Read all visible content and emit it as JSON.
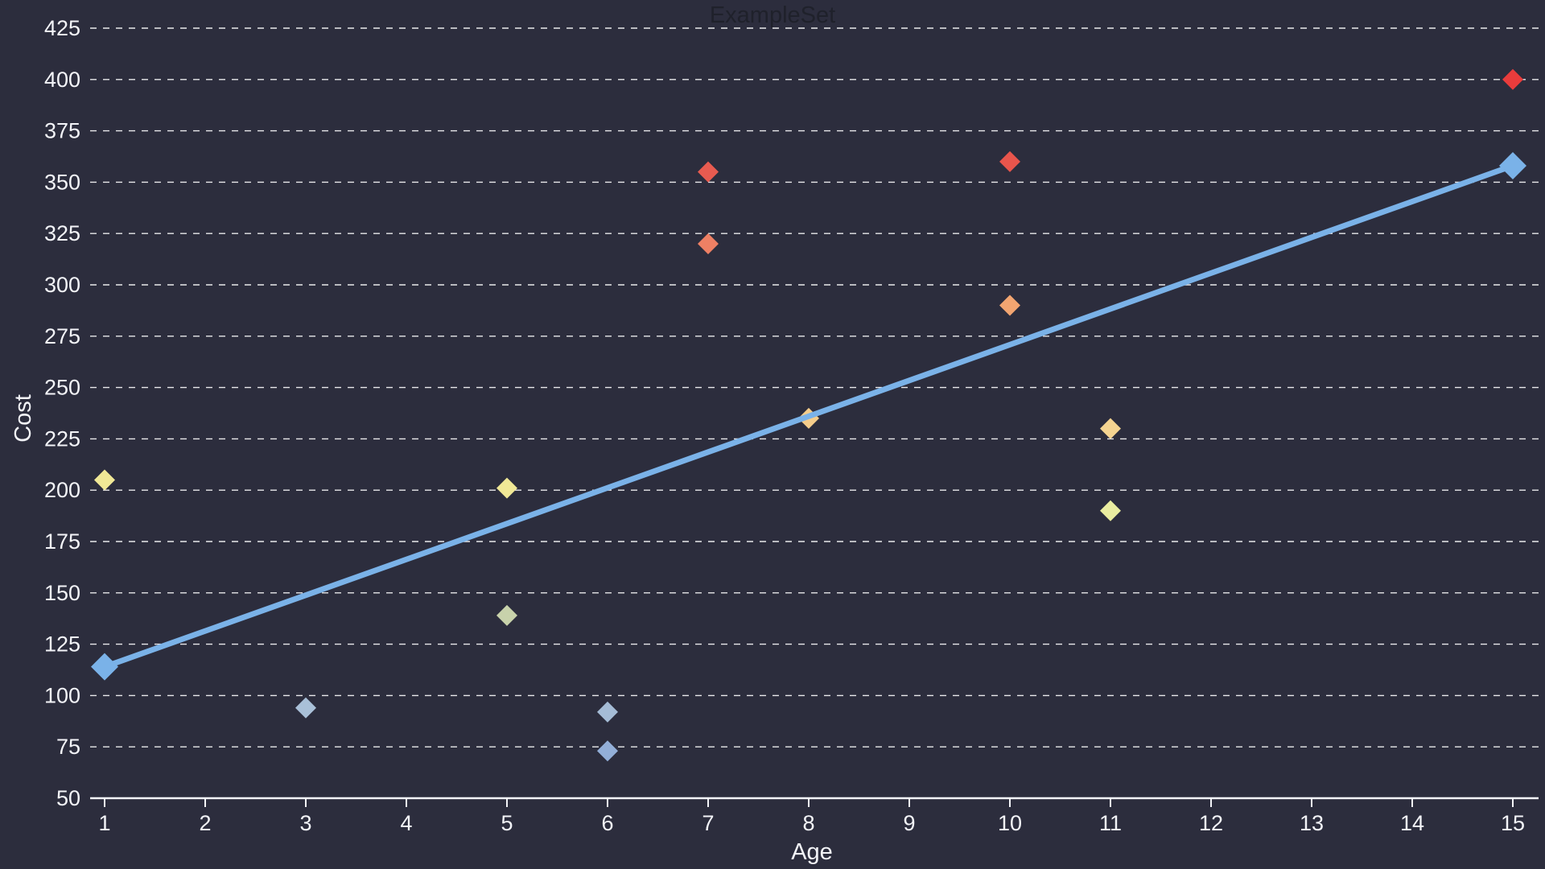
{
  "title": "ExampleSet",
  "colors": {
    "background": "#2c2d3d",
    "axis": "#f3f4f8",
    "gridline": "#ffffff",
    "title_text": "#1f212b",
    "trend_line": "#7ab2e8"
  },
  "chart_data": {
    "type": "scatter",
    "title": "ExampleSet",
    "xlabel": "Age",
    "ylabel": "Cost",
    "xlim": [
      1,
      15
    ],
    "ylim": [
      50,
      425
    ],
    "x_ticks": [
      1,
      2,
      3,
      4,
      5,
      6,
      7,
      8,
      9,
      10,
      11,
      12,
      13,
      14,
      15
    ],
    "y_ticks": [
      50,
      75,
      100,
      125,
      150,
      175,
      200,
      225,
      250,
      275,
      300,
      325,
      350,
      375,
      400,
      425
    ],
    "grid": "horizontal-dashed",
    "legend": "none",
    "marker": "diamond",
    "points": [
      {
        "x": 1,
        "y": 205,
        "color": "#f0e896"
      },
      {
        "x": 3,
        "y": 94,
        "color": "#a9c0d8"
      },
      {
        "x": 5,
        "y": 201,
        "color": "#f0e896"
      },
      {
        "x": 5,
        "y": 139,
        "color": "#c8d2ab"
      },
      {
        "x": 6,
        "y": 92,
        "color": "#a5bcd6"
      },
      {
        "x": 6,
        "y": 73,
        "color": "#93afd8"
      },
      {
        "x": 7,
        "y": 355,
        "color": "#e85b50"
      },
      {
        "x": 7,
        "y": 320,
        "color": "#ee8064"
      },
      {
        "x": 8,
        "y": 235,
        "color": "#f5cd8b"
      },
      {
        "x": 10,
        "y": 360,
        "color": "#e8554c"
      },
      {
        "x": 10,
        "y": 290,
        "color": "#f2a571"
      },
      {
        "x": 11,
        "y": 230,
        "color": "#f5d491"
      },
      {
        "x": 11,
        "y": 190,
        "color": "#eaeda0"
      },
      {
        "x": 15,
        "y": 400,
        "color": "#e93c3c"
      }
    ],
    "trend_line": {
      "color": "#7ab2e8",
      "width": 7,
      "endpoint_marker": "diamond",
      "points": [
        {
          "x": 1,
          "y": 114
        },
        {
          "x": 15,
          "y": 358
        }
      ]
    }
  }
}
